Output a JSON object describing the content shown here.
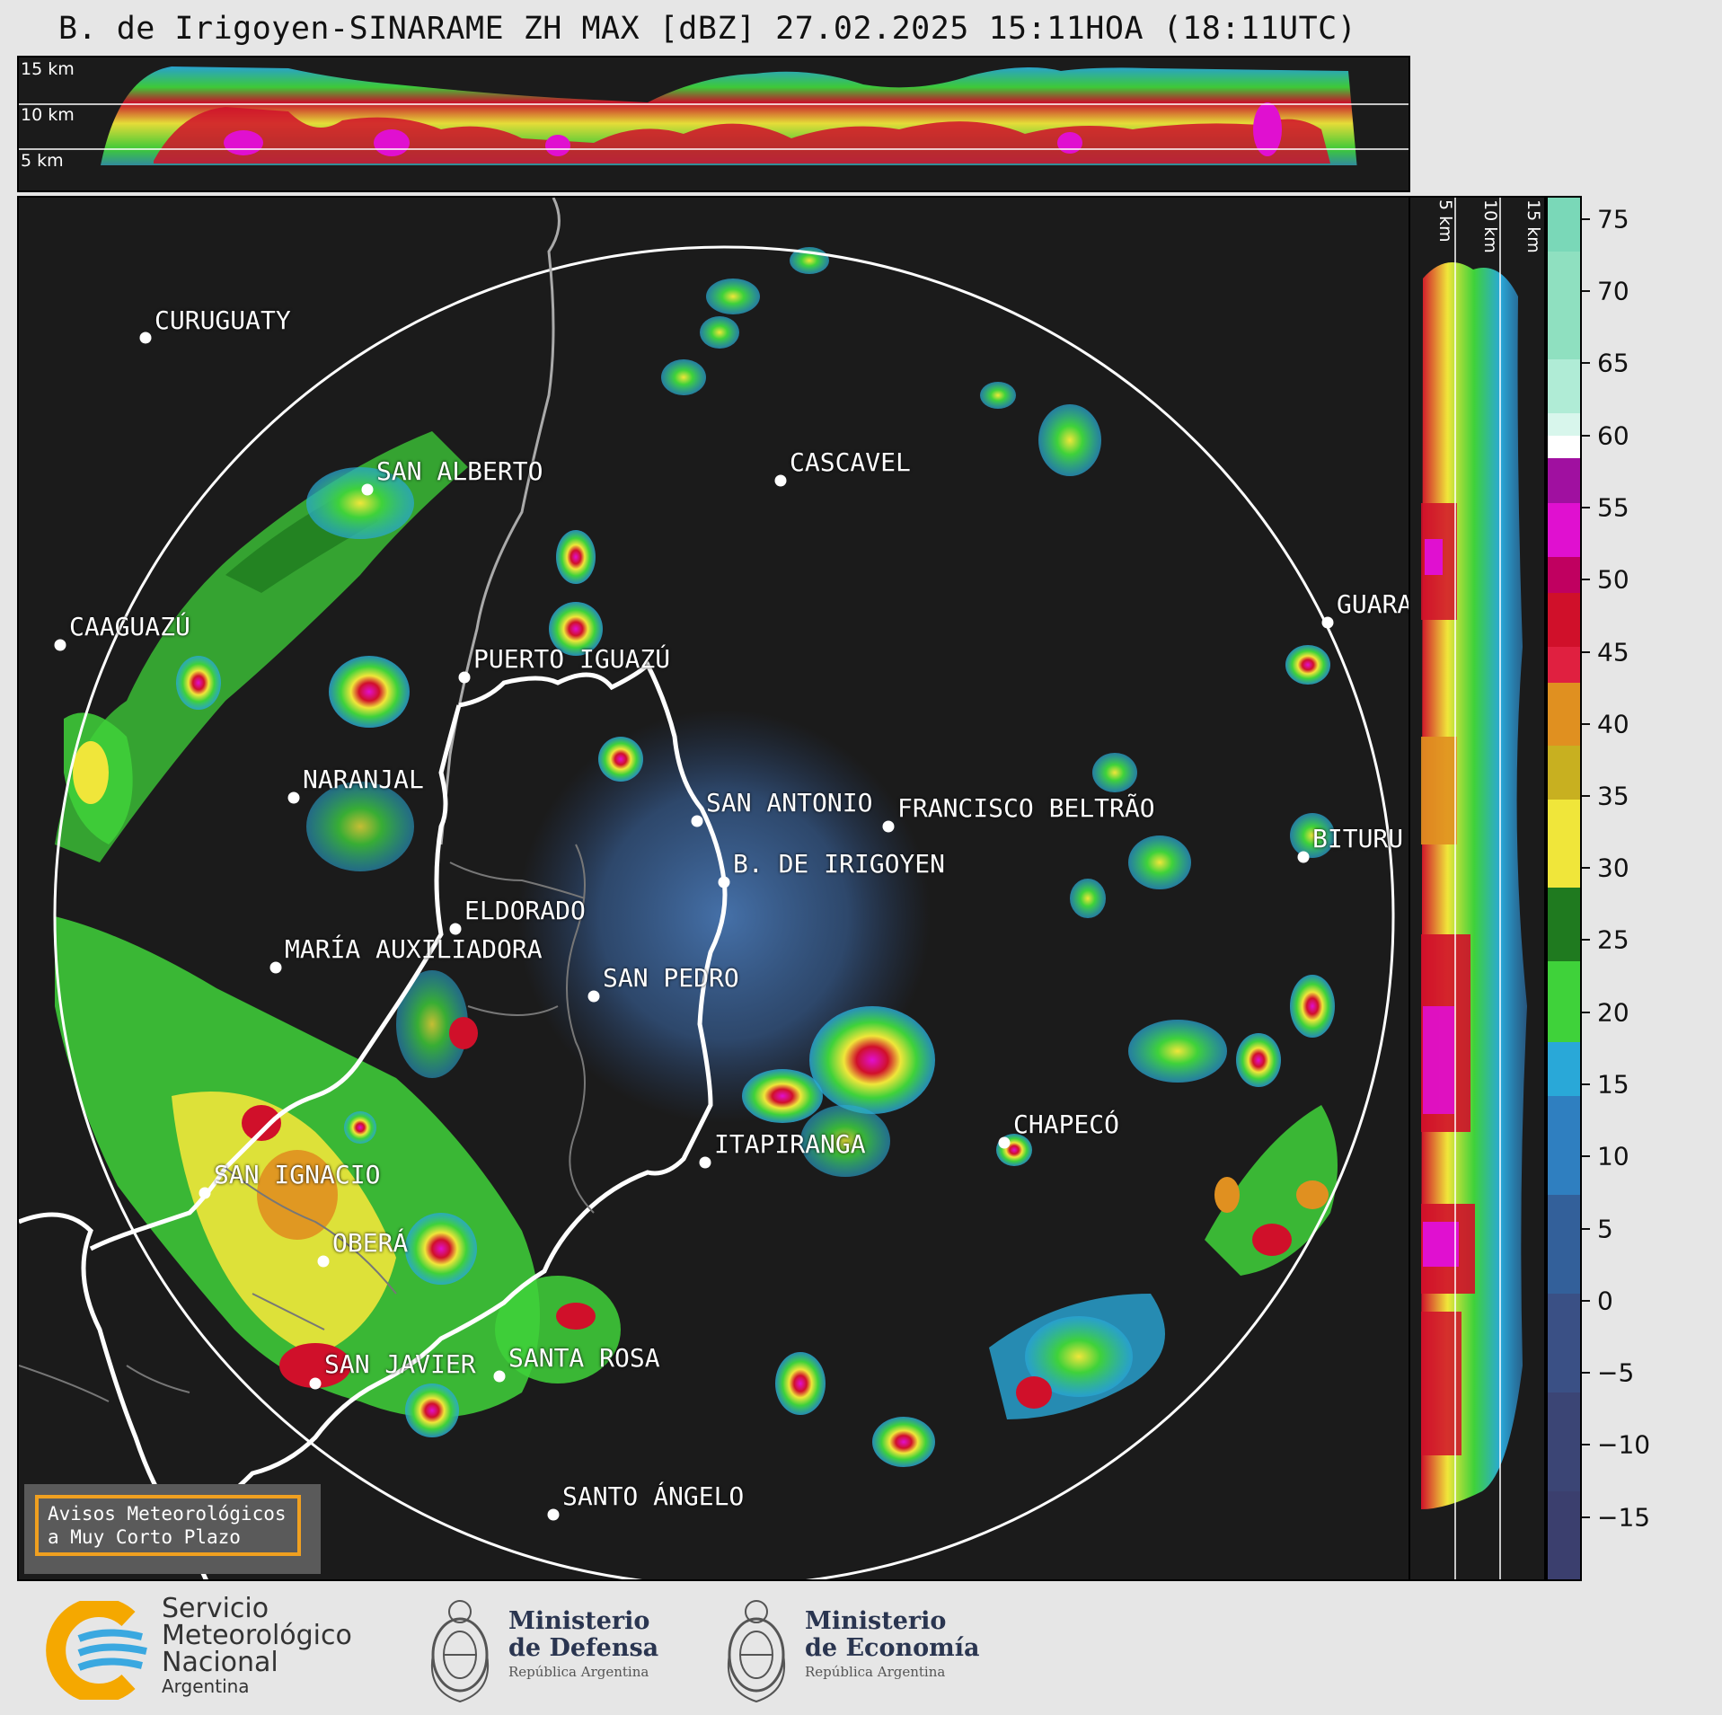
{
  "title": "B. de Irigoyen-SINARAME ZH MAX [dBZ] 27.02.2025 15:11HOA (18:11UTC)",
  "top_panel": {
    "altitude_labels": [
      "15 km",
      "10 km",
      "5 km"
    ]
  },
  "right_panel": {
    "altitude_labels": [
      "5 km",
      "10 km",
      "15 km"
    ]
  },
  "colorbar": {
    "unit": "dBZ",
    "ticks": [
      "75",
      "70",
      "65",
      "60",
      "55",
      "50",
      "45",
      "40",
      "35",
      "30",
      "25",
      "20",
      "15",
      "10",
      "5",
      "0",
      "−5",
      "−10",
      "−15"
    ],
    "range": [
      -20,
      77
    ],
    "colors": {
      "low": "#3b3f6e",
      "blue": "#2f7fc0",
      "cyan": "#29a8d8",
      "green": "#3fd23a",
      "dark_green": "#1f7a1f",
      "yellow": "#f0e63a",
      "orange": "#e09020",
      "red": "#d0102a",
      "magenta": "#e010d0",
      "purple": "#a010a0",
      "white": "#ffffff",
      "mint": "#8fe0c0"
    }
  },
  "cities": [
    {
      "name": "CURUGUATY"
    },
    {
      "name": "SAN ALBERTO"
    },
    {
      "name": "CASCAVEL"
    },
    {
      "name": "CAAGUAZÚ"
    },
    {
      "name": "PUERTO IGUAZÚ"
    },
    {
      "name": "GUARA"
    },
    {
      "name": "NARANJAL"
    },
    {
      "name": "SAN ANTONIO"
    },
    {
      "name": "FRANCISCO BELTRÃO"
    },
    {
      "name": "BITURU"
    },
    {
      "name": "B. DE IRIGOYEN"
    },
    {
      "name": "ELDORADO"
    },
    {
      "name": "MARÍA AUXILIADORA"
    },
    {
      "name": "SAN PEDRO"
    },
    {
      "name": "CHAPECÓ"
    },
    {
      "name": "ITAPIRANGA"
    },
    {
      "name": "SAN IGNACIO"
    },
    {
      "name": "OBERÁ"
    },
    {
      "name": "SANTA ROSA"
    },
    {
      "name": "SAN JAVIER"
    },
    {
      "name": "SANTO ÁNGELO"
    }
  ],
  "warning": {
    "line1": "Avisos Meteorológicos",
    "line2": "a Muy Corto Plazo"
  },
  "footer": {
    "smn": {
      "line1": "Servicio",
      "line2": "Meteorológico",
      "line3": "Nacional",
      "line4": "Argentina"
    },
    "defensa": {
      "line1": "Ministerio",
      "line2": "de Defensa",
      "line3": "República Argentina"
    },
    "economia": {
      "line1": "Ministerio",
      "line2": "de Economía",
      "line3": "República Argentina"
    }
  }
}
